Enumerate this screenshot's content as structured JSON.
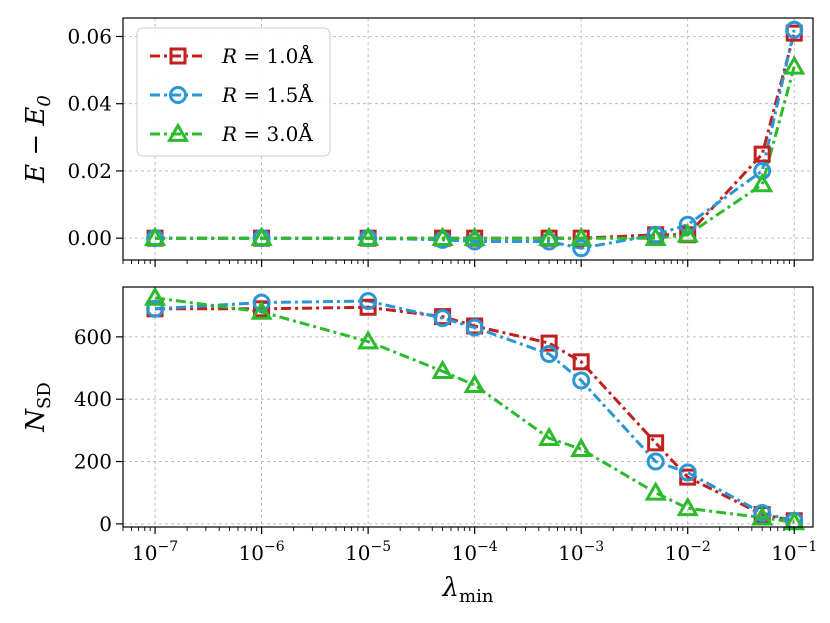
{
  "chart_data": [
    {
      "type": "line",
      "ylabel": "E − E",
      "ylabel_sub": "0",
      "x_scale": "log",
      "xlim": [
        5e-08,
        0.15
      ],
      "ylim": [
        -0.0065,
        0.0655
      ],
      "yticks": [
        0.0,
        0.02,
        0.04,
        0.06
      ],
      "ytick_labels": [
        "0.00",
        "0.02",
        "0.04",
        "0.06"
      ],
      "grid": true,
      "legend_position": "top-left",
      "x": [
        1e-07,
        1e-06,
        1e-05,
        5e-05,
        0.0001,
        0.0005,
        0.001,
        0.005,
        0.01,
        0.05,
        0.1
      ],
      "series": [
        {
          "name": "R = 1.0Å",
          "color": "#c0201f",
          "marker": "square",
          "values": [
            0.0,
            0.0,
            0.0,
            0.0,
            0.0,
            0.0,
            0.0,
            0.001,
            0.001,
            0.025,
            0.061
          ]
        },
        {
          "name": "R = 1.5Å",
          "color": "#2a96d4",
          "marker": "circle",
          "values": [
            0.0,
            0.0,
            0.0,
            -0.0005,
            -0.001,
            -0.001,
            -0.003,
            0.001,
            0.004,
            0.02,
            0.062
          ]
        },
        {
          "name": "R = 3.0Å",
          "color": "#2cbb2c",
          "marker": "triangle",
          "values": [
            0.0,
            0.0,
            0.0,
            0.0,
            0.0,
            0.0,
            0.0,
            0.0,
            0.001,
            0.016,
            0.051
          ]
        }
      ]
    },
    {
      "type": "line",
      "ylabel": "N",
      "ylabel_sub": "SD",
      "xlabel": "λ",
      "xlabel_sub": "min",
      "x_scale": "log",
      "xlim": [
        5e-08,
        0.15
      ],
      "ylim": [
        -10,
        760
      ],
      "yticks": [
        0,
        200,
        400,
        600
      ],
      "ytick_labels": [
        "0",
        "200",
        "400",
        "600"
      ],
      "xticks": [
        1e-07,
        1e-06,
        1e-05,
        0.0001,
        0.001,
        0.01,
        0.1
      ],
      "xtick_labels": [
        {
          "base": "10",
          "exp": "−7"
        },
        {
          "base": "10",
          "exp": "−6"
        },
        {
          "base": "10",
          "exp": "−5"
        },
        {
          "base": "10",
          "exp": "−4"
        },
        {
          "base": "10",
          "exp": "−3"
        },
        {
          "base": "10",
          "exp": "−2"
        },
        {
          "base": "10",
          "exp": "−1"
        }
      ],
      "grid": true,
      "x": [
        1e-07,
        1e-06,
        1e-05,
        5e-05,
        0.0001,
        0.0005,
        0.001,
        0.005,
        0.01,
        0.05,
        0.1
      ],
      "series": [
        {
          "name": "R = 1.0Å",
          "color": "#c0201f",
          "marker": "square",
          "values": [
            690,
            690,
            695,
            665,
            635,
            580,
            520,
            260,
            150,
            30,
            10
          ]
        },
        {
          "name": "R = 1.5Å",
          "color": "#2a96d4",
          "marker": "circle",
          "values": [
            690,
            710,
            715,
            660,
            630,
            545,
            460,
            200,
            165,
            35,
            10
          ]
        },
        {
          "name": "R = 3.0Å",
          "color": "#2cbb2c",
          "marker": "triangle",
          "values": [
            725,
            680,
            585,
            490,
            445,
            275,
            240,
            100,
            50,
            20,
            5
          ]
        }
      ]
    }
  ],
  "legend": {
    "entries": [
      {
        "label": "R = 1.0Å",
        "italic": "R",
        "rest": "= 1.0Å",
        "color": "#c0201f",
        "marker": "square"
      },
      {
        "label": "R = 1.5Å",
        "italic": "R",
        "rest": "= 1.5Å",
        "color": "#2a96d4",
        "marker": "circle"
      },
      {
        "label": "R = 3.0Å",
        "italic": "R",
        "rest": "= 3.0Å",
        "color": "#2cbb2c",
        "marker": "triangle"
      }
    ]
  }
}
